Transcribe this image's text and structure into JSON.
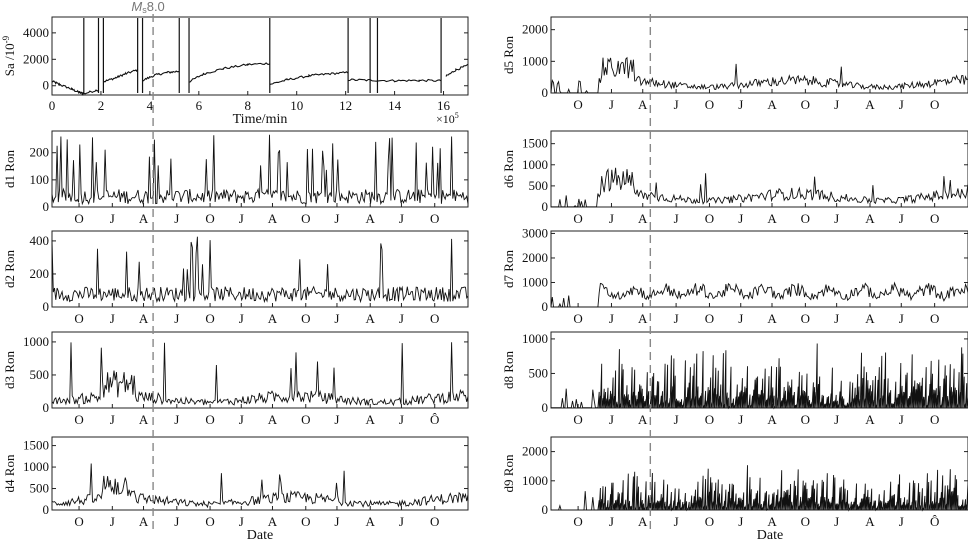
{
  "figure": {
    "event_label": "Ms8.0",
    "event_label_main": "M",
    "event_label_sub": "s",
    "event_label_mag": "8.0",
    "xlabel_date": "Date",
    "colors": {
      "line": "#111111",
      "dash": "#888888",
      "axis": "#222222"
    }
  },
  "chart_data": [
    {
      "id": "sa",
      "type": "line",
      "ylabel": "Sa /10",
      "ylabel_exp": "-9",
      "xlabel": "Time/min",
      "x_exponent": "×10",
      "x_exponent_power": "5",
      "x_ticks": [
        0,
        2,
        4,
        6,
        8,
        10,
        12,
        14,
        16
      ],
      "xlim": [
        0,
        17
      ],
      "y_ticks": [
        0,
        2000,
        4000
      ],
      "ylim": [
        -700,
        5200
      ],
      "event_x": 4.0,
      "resets": [
        1.3,
        1.9,
        2.1,
        3.5,
        3.7,
        5.2,
        5.6,
        8.9,
        12.1,
        13.0,
        13.3,
        15.9
      ],
      "segments": [
        {
          "x": [
            0,
            0.3,
            0.8,
            1.1,
            1.3
          ],
          "y": [
            350,
            100,
            -250,
            -500,
            -600
          ]
        },
        {
          "x": [
            1.3,
            1.9
          ],
          "y": [
            -600,
            -300
          ]
        },
        {
          "x": [
            2.1,
            2.6,
            3.0,
            3.5
          ],
          "y": [
            300,
            600,
            900,
            1200
          ]
        },
        {
          "x": [
            3.7,
            4.2,
            4.7,
            5.2
          ],
          "y": [
            400,
            800,
            1000,
            1100
          ]
        },
        {
          "x": [
            5.6,
            6.2,
            7.0,
            8.0,
            8.9
          ],
          "y": [
            300,
            900,
            1300,
            1600,
            1700
          ]
        },
        {
          "x": [
            8.9,
            9.6,
            10.5,
            11.3,
            12.1
          ],
          "y": [
            100,
            450,
            750,
            900,
            1000
          ]
        },
        {
          "x": [
            12.1,
            13.0,
            14.0,
            15.0,
            15.9
          ],
          "y": [
            450,
            420,
            380,
            400,
            380
          ]
        },
        {
          "x": [
            16.1,
            16.5,
            17.0
          ],
          "y": [
            700,
            1200,
            1550
          ]
        }
      ]
    },
    {
      "id": "d1",
      "type": "line",
      "ylabel": "d1 Ron",
      "y_ticks": [
        0,
        100,
        200
      ],
      "ylim": [
        0,
        280
      ],
      "x_tick_labels": [
        "O",
        "J",
        "A",
        "J",
        "O",
        "J",
        "A",
        "O",
        "J",
        "A",
        "J",
        "O"
      ],
      "event_month": 2.9,
      "series_profile": {
        "base": 28,
        "noise": 55,
        "spike_rate": 0.08,
        "spike_max": 270,
        "start_gap": 0,
        "profile": "flat"
      }
    },
    {
      "id": "d2",
      "type": "line",
      "ylabel": "d2 Ron",
      "y_ticks": [
        0,
        200,
        400
      ],
      "ylim": [
        0,
        460
      ],
      "x_tick_labels": [
        "O",
        "J",
        "A",
        "J",
        "O",
        "J",
        "A",
        "O",
        "J",
        "A",
        "J",
        "O"
      ],
      "event_month": 2.9,
      "series_profile": {
        "base": 60,
        "noise": 90,
        "spike_rate": 0.05,
        "spike_max": 440,
        "start_gap": 0,
        "profile": "flat"
      }
    },
    {
      "id": "d3",
      "type": "line",
      "ylabel": "d3 Ron",
      "y_ticks": [
        0,
        500,
        1000
      ],
      "ylim": [
        0,
        1150
      ],
      "x_tick_labels": [
        "O",
        "J",
        "A",
        "J",
        "O",
        "J",
        "A",
        "O",
        "J",
        "A",
        "J",
        "Ô"
      ],
      "event_month": 2.9,
      "series_profile": {
        "base": 120,
        "noise": 180,
        "spike_rate": 0.02,
        "spike_max": 1150,
        "start_gap": 0,
        "profile": "seasonal"
      }
    },
    {
      "id": "d4",
      "type": "line",
      "ylabel": "d4 Ron",
      "y_ticks": [
        0,
        500,
        1000,
        1500
      ],
      "ylim": [
        0,
        1700
      ],
      "x_tick_labels": [
        "O",
        "J",
        "A",
        "J",
        "O",
        "J",
        "A",
        "O",
        "J",
        "A",
        "J",
        "O"
      ],
      "event_month": 2.9,
      "series_profile": {
        "base": 200,
        "noise": 250,
        "spike_rate": 0.02,
        "spike_max": 1150,
        "start_gap": 0,
        "profile": "seasonal"
      }
    },
    {
      "id": "d5",
      "type": "line",
      "ylabel": "d5 Ron",
      "y_ticks": [
        0,
        1000,
        2000
      ],
      "ylim": [
        0,
        2400
      ],
      "x_tick_labels": [
        "O",
        "J",
        "A",
        "J",
        "O",
        "J",
        "A",
        "O",
        "J",
        "A",
        "J",
        "O"
      ],
      "event_month": 2.9,
      "series_profile": {
        "base": 280,
        "noise": 300,
        "spike_rate": 0.02,
        "spike_max": 1100,
        "start_gap": 0.9,
        "profile": "seasonal"
      }
    },
    {
      "id": "d6",
      "type": "line",
      "ylabel": "d6 Ron",
      "y_ticks": [
        0,
        500,
        1000,
        1500
      ],
      "ylim": [
        0,
        1800
      ],
      "x_tick_labels": [
        "O",
        "J",
        "A",
        "J",
        "O",
        "J",
        "A",
        "O",
        "J",
        "A",
        "J",
        "O"
      ],
      "event_month": 2.9,
      "series_profile": {
        "base": 220,
        "noise": 260,
        "spike_rate": 0.02,
        "spike_max": 850,
        "start_gap": 0.9,
        "profile": "seasonal"
      }
    },
    {
      "id": "d7",
      "type": "line",
      "ylabel": "d7 Ron",
      "y_ticks": [
        0,
        1000,
        2000,
        3000
      ],
      "ylim": [
        0,
        3100
      ],
      "x_tick_labels": [
        "O",
        "J",
        "A",
        "J",
        "O",
        "J",
        "A",
        "O",
        "J",
        "A",
        "J",
        "O"
      ],
      "event_month": 2.9,
      "series_profile": {
        "base": 550,
        "noise": 500,
        "spike_rate": 0.0,
        "spike_max": 1200,
        "start_gap": 1.0,
        "profile": "oscillating"
      }
    },
    {
      "id": "d8",
      "type": "line",
      "ylabel": "d8 Ron",
      "y_ticks": [
        0,
        500,
        1000
      ],
      "ylim": [
        0,
        1100
      ],
      "x_tick_labels": [
        "O",
        "J",
        "A",
        "J",
        "O",
        "J",
        "A",
        "O",
        "J",
        "A",
        "J",
        "O"
      ],
      "event_month": 2.9,
      "series_profile": {
        "base": 250,
        "noise": 550,
        "spike_rate": 0.0,
        "spike_max": 1000,
        "start_gap": 1.0,
        "profile": "bars"
      }
    },
    {
      "id": "d9",
      "type": "line",
      "ylabel": "d9 Ron",
      "y_ticks": [
        0,
        1000,
        2000
      ],
      "ylim": [
        0,
        2500
      ],
      "x_tick_labels": [
        "O",
        "J",
        "A",
        "J",
        "O",
        "J",
        "A",
        "O",
        "J",
        "A",
        "J",
        "Ô"
      ],
      "event_month": 2.9,
      "series_profile": {
        "base": 450,
        "noise": 900,
        "spike_rate": 0.0,
        "spike_max": 1450,
        "start_gap": 1.0,
        "profile": "bars"
      }
    }
  ]
}
